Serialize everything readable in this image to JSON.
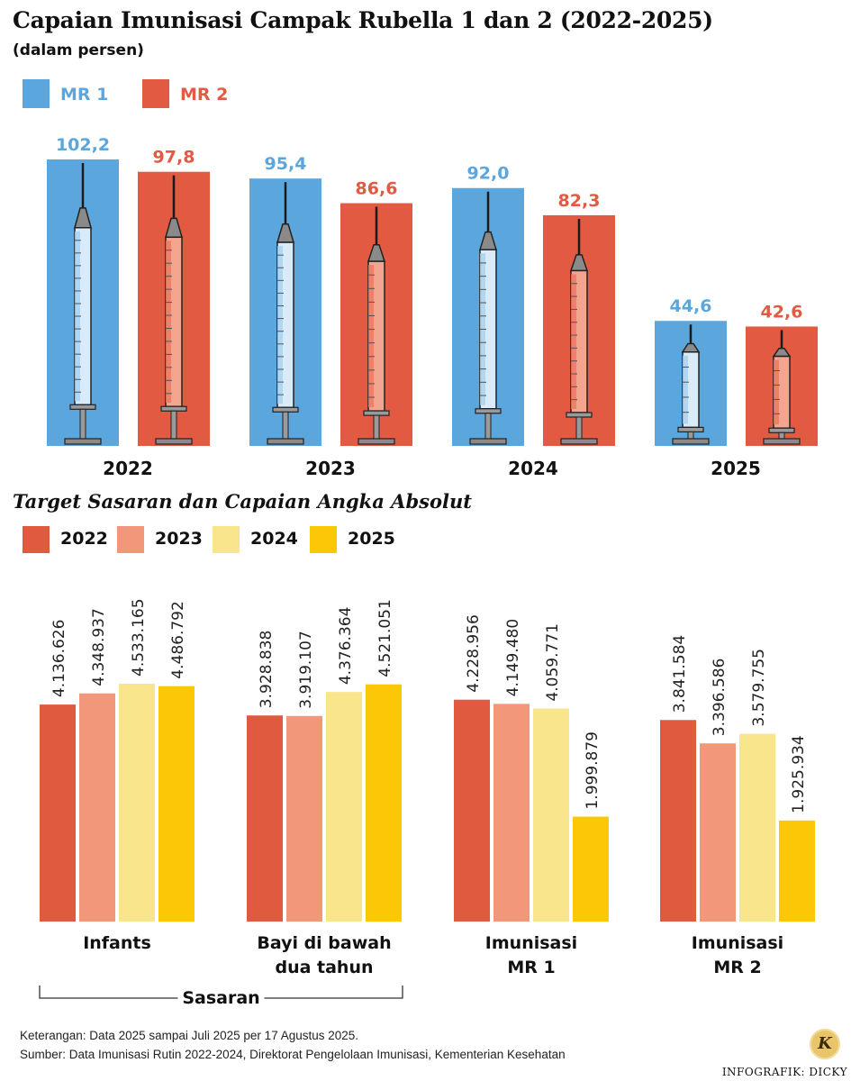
{
  "title": "Capaian Imunisasi Campak Rubella 1 dan 2 (2022-2025)",
  "subtitle": "(dalam persen)",
  "colors": {
    "mr1": "#5aa6dd",
    "mr2": "#e15a41",
    "y2022": "#e05a40",
    "y2023": "#f2977a",
    "y2024": "#f8e58c",
    "y2025": "#fcc706"
  },
  "legend_top": [
    {
      "label": "MR 1",
      "color": "#5aa6dd"
    },
    {
      "label": "MR 2",
      "color": "#e15a41"
    }
  ],
  "chart_data": [
    {
      "type": "bar",
      "title": "Capaian Imunisasi Campak Rubella 1 dan 2 (2022-2025)",
      "ylabel": "dalam persen",
      "categories": [
        "2022",
        "2023",
        "2024",
        "2025"
      ],
      "series": [
        {
          "name": "MR 1",
          "values": [
            102.2,
            95.4,
            92.0,
            44.6
          ],
          "labels": [
            "102,2",
            "95,4",
            "92,0",
            "44,6"
          ]
        },
        {
          "name": "MR 2",
          "values": [
            97.8,
            86.6,
            82.3,
            42.6
          ],
          "labels": [
            "97,8",
            "86,6",
            "82,3",
            "42,6"
          ]
        }
      ],
      "ylim": [
        0,
        102.2
      ]
    },
    {
      "type": "bar",
      "title": "Target Sasaran dan Capaian Angka Absolut",
      "categories": [
        "Infants",
        "Bayi di bawah dua tahun",
        "Imunisasi MR 1",
        "Imunisasi MR 2"
      ],
      "category_lines": [
        [
          "Infants"
        ],
        [
          "Bayi di bawah",
          "dua tahun"
        ],
        [
          "Imunisasi",
          "MR 1"
        ],
        [
          "Imunisasi",
          "MR 2"
        ]
      ],
      "series": [
        {
          "name": "2022",
          "values": [
            4136626,
            3928838,
            4228956,
            3841584
          ],
          "labels": [
            "4.136.626",
            "3.928.838",
            "4.228.956",
            "3.841.584"
          ]
        },
        {
          "name": "2023",
          "values": [
            4348937,
            3919107,
            4149480,
            3396586
          ],
          "labels": [
            "4.348.937",
            "3.919.107",
            "4.149.480",
            "3.396.586"
          ]
        },
        {
          "name": "2024",
          "values": [
            4533165,
            4376364,
            4059771,
            3579755
          ],
          "labels": [
            "4.533.165",
            "4.376.364",
            "4.059.771",
            "3.579.755"
          ]
        },
        {
          "name": "2025",
          "values": [
            4486792,
            4521051,
            1999879,
            1925934
          ],
          "labels": [
            "4.486.792",
            "4.521.051",
            "1.999.879",
            "1.925.934"
          ]
        }
      ],
      "bracket_label": "Sasaran"
    }
  ],
  "section2_title": "Target Sasaran dan Capaian Angka Absolut",
  "legend_bottom": [
    {
      "label": "2022",
      "color": "#e05a40"
    },
    {
      "label": "2023",
      "color": "#f2977a"
    },
    {
      "label": "2024",
      "color": "#f8e58c"
    },
    {
      "label": "2025",
      "color": "#fcc706"
    }
  ],
  "footer": {
    "note": "Keterangan: Data 2025 sampai Juli 2025 per 17 Agustus 2025.",
    "source": "Sumber: Data Imunisasi Rutin 2022-2024, Direktorat Pengelolaan Imunisasi, Kementerian Kesehatan",
    "credit": "INFOGRAFIK: DICKY",
    "logo": "K"
  }
}
